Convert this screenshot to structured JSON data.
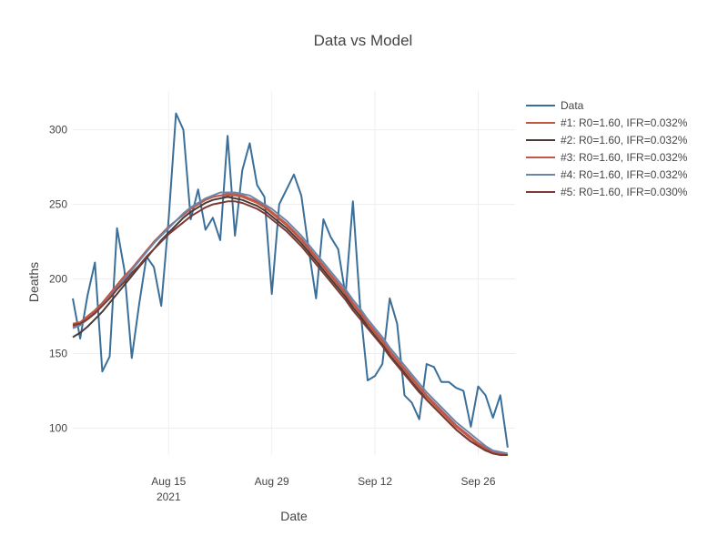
{
  "chart_data": {
    "type": "line",
    "title": "Data vs Model",
    "xlabel": "Date",
    "ylabel": "Deaths",
    "x_start": "2021-08-02",
    "xlim": [
      "2021-08-02",
      "2021-10-01"
    ],
    "ylim": [
      82,
      326
    ],
    "grid": true,
    "legend_position": "top-right (outside plot)",
    "x_ticks": [
      {
        "date": "2021-08-15",
        "label": "Aug 15",
        "sublabel": "2021"
      },
      {
        "date": "2021-08-29",
        "label": "Aug 29",
        "sublabel": ""
      },
      {
        "date": "2021-09-12",
        "label": "Sep 12",
        "sublabel": ""
      },
      {
        "date": "2021-09-26",
        "label": "Sep 26",
        "sublabel": ""
      }
    ],
    "y_ticks": [
      100,
      150,
      200,
      250,
      300
    ],
    "series": [
      {
        "name": "Data",
        "color": "#3a6f9a",
        "values": [
          187,
          160,
          189,
          211,
          138,
          148,
          234,
          206,
          147,
          183,
          215,
          208,
          182,
          240,
          311,
          300,
          240,
          260,
          233,
          241,
          226,
          296,
          229,
          273,
          291,
          263,
          255,
          190,
          250,
          260,
          270,
          256,
          220,
          187,
          240,
          228,
          220,
          189,
          252,
          180,
          132,
          135,
          143,
          187,
          170,
          122,
          117,
          106,
          143,
          141,
          131,
          131,
          127,
          125,
          101,
          128,
          122,
          107,
          122,
          87
        ]
      },
      {
        "name": "#1: R0=1.60, IFR=0.032%",
        "color": "#c0573f",
        "values": [
          170,
          171,
          175,
          179,
          184,
          190,
          196,
          202,
          207,
          213,
          219,
          225,
          230,
          235,
          239,
          243,
          247,
          250,
          253,
          255,
          256,
          256,
          256,
          255,
          253,
          251,
          248,
          244,
          240,
          236,
          231,
          226,
          220,
          214,
          208,
          202,
          196,
          190,
          183,
          177,
          170,
          164,
          158,
          151,
          145,
          139,
          133,
          127,
          121,
          116,
          111,
          106,
          101,
          97,
          93,
          89,
          86,
          84,
          83,
          82
        ]
      },
      {
        "name": "#2: R0=1.60, IFR=0.032%",
        "color": "#4a3a38",
        "values": [
          161,
          164,
          168,
          173,
          178,
          184,
          190,
          196,
          202,
          208,
          214,
          220,
          226,
          231,
          236,
          241,
          245,
          248,
          251,
          253,
          254,
          255,
          254,
          253,
          251,
          249,
          246,
          242,
          238,
          234,
          229,
          224,
          218,
          212,
          206,
          200,
          194,
          188,
          181,
          175,
          168,
          162,
          156,
          149,
          143,
          137,
          131,
          125,
          119,
          114,
          109,
          104,
          99,
          95,
          91,
          88,
          85,
          84,
          83,
          82
        ]
      },
      {
        "name": "#3: R0=1.60, IFR=0.032%",
        "color": "#c2584c",
        "values": [
          168,
          170,
          174,
          178,
          183,
          189,
          195,
          201,
          207,
          213,
          219,
          224,
          230,
          235,
          239,
          243,
          247,
          250,
          253,
          255,
          256,
          257,
          257,
          256,
          254,
          252,
          249,
          245,
          241,
          237,
          232,
          227,
          221,
          215,
          209,
          203,
          197,
          191,
          184,
          178,
          171,
          165,
          159,
          152,
          146,
          140,
          134,
          128,
          122,
          117,
          112,
          107,
          102,
          98,
          94,
          90,
          87,
          84,
          83,
          82
        ]
      },
      {
        "name": "#4: R0=1.60, IFR=0.032%",
        "color": "#6a86aa",
        "values": [
          167,
          169,
          173,
          177,
          182,
          188,
          194,
          200,
          206,
          212,
          218,
          224,
          229,
          234,
          239,
          244,
          248,
          251,
          254,
          256,
          258,
          258,
          258,
          257,
          256,
          253,
          250,
          247,
          243,
          239,
          234,
          229,
          223,
          217,
          211,
          205,
          199,
          193,
          186,
          180,
          173,
          167,
          161,
          154,
          148,
          142,
          136,
          130,
          124,
          119,
          114,
          109,
          104,
          100,
          96,
          92,
          88,
          85,
          84,
          83
        ]
      },
      {
        "name": "#5: R0=1.60, IFR=0.030%",
        "color": "#7a3b32",
        "values": [
          169,
          170,
          173,
          177,
          182,
          187,
          193,
          198,
          204,
          209,
          215,
          220,
          225,
          230,
          234,
          238,
          242,
          245,
          248,
          250,
          251,
          252,
          252,
          251,
          249,
          247,
          244,
          240,
          236,
          232,
          227,
          222,
          216,
          210,
          204,
          198,
          192,
          186,
          179,
          173,
          167,
          161,
          155,
          148,
          142,
          136,
          130,
          124,
          119,
          114,
          109,
          104,
          99,
          95,
          91,
          88,
          85,
          83,
          82,
          82
        ]
      }
    ]
  }
}
